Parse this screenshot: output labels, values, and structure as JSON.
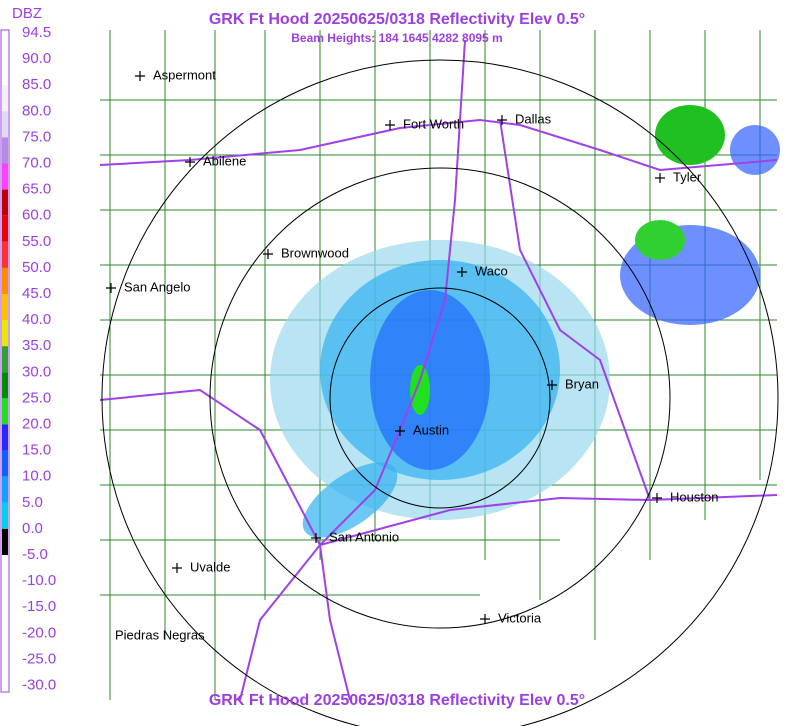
{
  "header": {
    "title": "GRK Ft Hood 20250625/0318 Reflectivity Elev 0.5°",
    "subtitle": "Beam Heights: 184 1645 4282 8095 m"
  },
  "footer": {
    "title": "GRK Ft Hood 20250625/0318 Reflectivity Elev 0.5°"
  },
  "legend": {
    "unit": "DBZ",
    "labels": [
      "94.5",
      "90.0",
      "85.0",
      "80.0",
      "75.0",
      "70.0",
      "65.0",
      "60.0",
      "55.0",
      "50.0",
      "45.0",
      "40.0",
      "35.0",
      "30.0",
      "25.0",
      "20.0",
      "15.0",
      "10.0",
      "5.0",
      "0.0",
      "-5.0",
      "-10.0",
      "-15.0",
      "-20.0",
      "-25.0",
      "-30.0"
    ],
    "colors": [
      "#ffffff",
      "#ffffff",
      "#f4f0fa",
      "#e4d8f4",
      "#b48ce4",
      "#ff40ff",
      "#c00000",
      "#e80000",
      "#ff3030",
      "#ff8c00",
      "#ffc000",
      "#e8e800",
      "#30a030",
      "#008c00",
      "#20e020",
      "#2828ff",
      "#1060ff",
      "#10a0ff",
      "#00d0e8",
      "#000000",
      "#ffffff",
      "#ffffff",
      "#ffffff",
      "#ffffff",
      "#ffffff"
    ]
  },
  "cities": [
    "Aspermont",
    "Fort Worth",
    "Dallas",
    "Abilene",
    "Tyler",
    "Brownwood",
    "Waco",
    "San Angelo",
    "Bryan",
    "Austin",
    "Houston",
    "San Antonio",
    "Uvalde",
    "Victoria",
    "Piedras Negras"
  ]
}
